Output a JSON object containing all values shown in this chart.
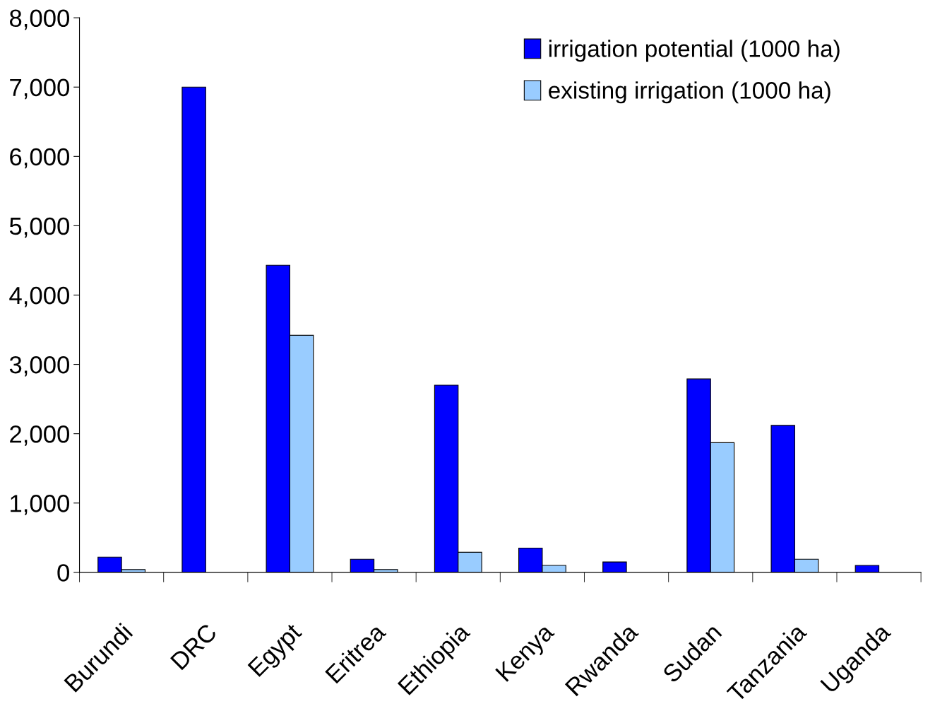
{
  "chart_data": {
    "type": "bar",
    "categories": [
      "Burundi",
      "DRC",
      "Egypt",
      "Eritrea",
      "Ethiopia",
      "Kenya",
      "Rwanda",
      "Sudan",
      "Tanzania",
      "Uganda"
    ],
    "series": [
      {
        "name": "irrigation potential (1000 ha)",
        "color": "#0000ff",
        "values": [
          220,
          7000,
          4430,
          190,
          2700,
          350,
          150,
          2790,
          2120,
          100
        ]
      },
      {
        "name": "existing irrigation (1000 ha)",
        "color": "#99ccff",
        "values": [
          40,
          null,
          3420,
          40,
          290,
          100,
          null,
          1870,
          190,
          null
        ]
      }
    ],
    "ylim": [
      0,
      8000
    ],
    "yticks": [
      {
        "value": 0,
        "label": "0"
      },
      {
        "value": 1000,
        "label": "1,000"
      },
      {
        "value": 2000,
        "label": "2,000"
      },
      {
        "value": 3000,
        "label": "3,000"
      },
      {
        "value": 4000,
        "label": "4,000"
      },
      {
        "value": 5000,
        "label": "5,000"
      },
      {
        "value": 6000,
        "label": "6,000"
      },
      {
        "value": 7000,
        "label": "7,000"
      },
      {
        "value": 8000,
        "label": "8,000"
      }
    ],
    "grid": false,
    "legend": "top right"
  }
}
